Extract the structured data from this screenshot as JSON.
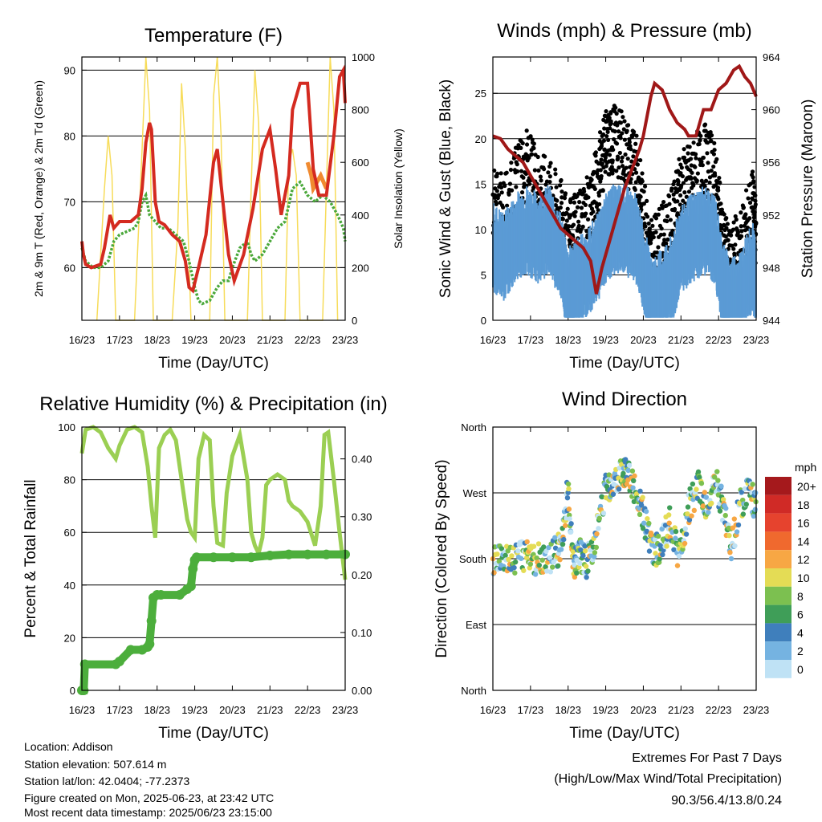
{
  "chart_data": [
    {
      "id": "temperature",
      "type": "line",
      "title": "Temperature (F)",
      "xlabel": "Time (Day/UTC)",
      "ylabel": "2m & 9m T (Red, Orange) & 2m Td (Green)",
      "ylabel_right": "Solar Insolation (Yellow)",
      "x_ticks": [
        "16/23",
        "17/23",
        "18/23",
        "19/23",
        "20/23",
        "21/23",
        "22/23",
        "23/23"
      ],
      "y_ticks": [
        "60",
        "70",
        "80",
        "90"
      ],
      "y_ticks_right": [
        "0",
        "200",
        "400",
        "600",
        "800",
        "1000"
      ],
      "ylim": [
        52,
        92
      ],
      "ylim_right": [
        0,
        1000
      ],
      "xlim": [
        0,
        7
      ],
      "colors": {
        "t2m": "#d42a20",
        "t9m": "#f08a30",
        "td": "#4aa83a",
        "solar": "#f7dc5a"
      },
      "series": [
        {
          "name": "2m T",
          "x": [
            0,
            0.04,
            0.1,
            0.25,
            0.5,
            0.6,
            0.75,
            0.85,
            1.0,
            1.15,
            1.3,
            1.5,
            1.6,
            1.7,
            1.8,
            1.85,
            1.95,
            2.05,
            2.2,
            2.4,
            2.6,
            2.75,
            2.85,
            2.95,
            3.1,
            3.3,
            3.5,
            3.6,
            3.75,
            3.9,
            4.05,
            4.3,
            4.55,
            4.8,
            5.0,
            5.15,
            5.3,
            5.5,
            5.6,
            5.8,
            6.0,
            6.15,
            6.3,
            6.5,
            6.7,
            6.85,
            6.95,
            7.0
          ],
          "values": [
            64,
            62,
            60.5,
            60,
            60.5,
            63,
            68,
            66,
            67,
            67,
            67,
            68,
            72,
            79,
            82,
            81,
            70,
            67,
            66.5,
            65,
            64,
            61,
            57,
            56.5,
            60,
            65,
            76,
            78,
            70,
            62,
            58,
            62,
            69,
            78,
            81,
            75,
            68,
            74,
            84,
            88,
            88,
            75,
            71,
            71,
            80,
            89,
            90,
            85
          ]
        },
        {
          "name": "9m T",
          "x": [
            6.0,
            6.1,
            6.15,
            6.25,
            6.35,
            6.5
          ],
          "values": [
            76,
            74,
            72,
            73,
            74,
            72
          ]
        },
        {
          "name": "2m Td",
          "x": [
            0,
            0.1,
            0.3,
            0.5,
            0.7,
            0.85,
            1.0,
            1.2,
            1.4,
            1.5,
            1.6,
            1.7,
            1.8,
            1.95,
            2.1,
            2.3,
            2.5,
            2.7,
            2.85,
            3.0,
            3.1,
            3.2,
            3.4,
            3.6,
            3.75,
            3.9,
            4.0,
            4.2,
            4.4,
            4.5,
            4.6,
            4.8,
            5.0,
            5.2,
            5.4,
            5.6,
            5.8,
            6.0,
            6.2,
            6.4,
            6.6,
            6.8,
            6.95,
            7.0
          ],
          "values": [
            63,
            61,
            60,
            60,
            61,
            64,
            65,
            65.5,
            66,
            67,
            70,
            71,
            68,
            67,
            66,
            66,
            65,
            64,
            61,
            57,
            55,
            54.5,
            55,
            57,
            58,
            58,
            60,
            63,
            64,
            62,
            61,
            62,
            64,
            66,
            67,
            72,
            73,
            71,
            70,
            71,
            70,
            68,
            66,
            64
          ]
        },
        {
          "name": "Solar Insolation",
          "x": [
            0.4,
            0.6,
            0.7,
            0.8,
            0.9,
            1.4,
            1.6,
            1.7,
            1.8,
            1.9,
            2.4,
            2.55,
            2.65,
            2.75,
            2.9,
            3.4,
            3.5,
            3.6,
            3.7,
            3.8,
            4.4,
            4.5,
            4.6,
            4.7,
            4.8,
            5.4,
            5.5,
            5.6,
            5.7,
            5.8,
            6.4,
            6.5,
            6.6,
            6.7,
            6.8
          ],
          "values": [
            0,
            500,
            700,
            550,
            0,
            0,
            650,
            1000,
            800,
            0,
            0,
            350,
            900,
            650,
            0,
            0,
            850,
            1000,
            700,
            0,
            0,
            500,
            950,
            750,
            0,
            0,
            600,
            650,
            550,
            0,
            0,
            500,
            1000,
            800,
            0
          ]
        }
      ]
    },
    {
      "id": "winds",
      "type": "scatter",
      "title": "Winds (mph) & Pressure (mb)",
      "xlabel": "Time (Day/UTC)",
      "ylabel": "Sonic Wind & Gust (Blue, Black)",
      "ylabel_right": "Station Pressure (Maroon)",
      "x_ticks": [
        "16/23",
        "17/23",
        "18/23",
        "19/23",
        "20/23",
        "21/23",
        "22/23",
        "23/23"
      ],
      "y_ticks": [
        "0",
        "5",
        "10",
        "15",
        "20",
        "25"
      ],
      "y_ticks_right": [
        "944",
        "948",
        "952",
        "956",
        "960",
        "964"
      ],
      "ylim": [
        0,
        29
      ],
      "ylim_right": [
        944,
        964
      ],
      "xlim": [
        0,
        7
      ],
      "colors": {
        "wind": "#5b9bd5",
        "gust": "#000000",
        "pressure": "#a01818"
      },
      "series": [
        {
          "name": "Sonic Wind",
          "x": [
            0,
            0.3,
            0.6,
            0.9,
            1.2,
            1.5,
            1.8,
            2.0,
            2.2,
            2.5,
            2.8,
            3.0,
            3.2,
            3.5,
            3.8,
            4.0,
            4.2,
            4.5,
            4.8,
            5.0,
            5.3,
            5.6,
            5.9,
            6.1,
            6.3,
            6.6,
            6.9,
            7.0
          ],
          "values": [
            9,
            8,
            10,
            11,
            10,
            11,
            8,
            4,
            5,
            6,
            8,
            10,
            11,
            11,
            10,
            7,
            3,
            4,
            6,
            9,
            10,
            11,
            10,
            5,
            3,
            4,
            7,
            5
          ]
        },
        {
          "name": "Gust",
          "x": [
            0,
            0.3,
            0.6,
            0.9,
            1.2,
            1.5,
            1.8,
            2.0,
            2.2,
            2.5,
            2.8,
            3.0,
            3.2,
            3.5,
            3.8,
            4.0,
            4.2,
            4.5,
            4.8,
            5.0,
            5.3,
            5.6,
            5.9,
            6.1,
            6.3,
            6.6,
            6.9,
            7.0
          ],
          "values": [
            13,
            12,
            15,
            17,
            15,
            14,
            12,
            9,
            10,
            12,
            16,
            19,
            20,
            19,
            17,
            12,
            7,
            9,
            11,
            15,
            16,
            18,
            16,
            9,
            6,
            9,
            13,
            9
          ]
        },
        {
          "name": "Station Pressure",
          "x": [
            0,
            0.2,
            0.4,
            0.6,
            0.8,
            1.0,
            1.2,
            1.4,
            1.6,
            1.8,
            2.0,
            2.2,
            2.4,
            2.6,
            2.75,
            2.9,
            3.1,
            3.3,
            3.5,
            3.7,
            3.9,
            4.0,
            4.1,
            4.2,
            4.3,
            4.5,
            4.7,
            4.9,
            5.1,
            5.2,
            5.4,
            5.6,
            5.8,
            6.0,
            6.2,
            6.4,
            6.55,
            6.7,
            6.85,
            7.0
          ],
          "values": [
            958,
            957.8,
            957,
            956.5,
            956,
            955,
            954,
            953,
            952,
            951,
            950.5,
            950,
            949.5,
            948.5,
            946,
            948,
            950,
            952,
            954,
            955.5,
            957,
            958,
            959.5,
            961,
            962,
            961.5,
            960,
            959,
            958.5,
            958,
            958,
            960,
            960,
            961.5,
            962,
            963,
            963.3,
            962.5,
            962,
            961
          ]
        }
      ]
    },
    {
      "id": "humidity",
      "type": "line",
      "title": "Relative Humidity (%) & Precipitation (in)",
      "xlabel": "Time (Day/UTC)",
      "ylabel": "Percent & Total Rainfall",
      "x_ticks": [
        "16/23",
        "17/23",
        "18/23",
        "19/23",
        "20/23",
        "21/23",
        "22/23",
        "23/23"
      ],
      "y_ticks": [
        "0",
        "20",
        "40",
        "60",
        "80",
        "100"
      ],
      "y_ticks_right": [
        "0.00",
        "0.10",
        "0.20",
        "0.30",
        "0.40"
      ],
      "ylim": [
        0,
        100
      ],
      "ylim_right": [
        0,
        0.455
      ],
      "xlim": [
        0,
        7
      ],
      "colors": {
        "rh": "#9bcf53",
        "precip": "#4cae3c"
      },
      "series": [
        {
          "name": "Relative Humidity",
          "x": [
            0,
            0.1,
            0.3,
            0.5,
            0.7,
            0.8,
            0.9,
            1.0,
            1.2,
            1.4,
            1.6,
            1.75,
            1.85,
            1.95,
            2.05,
            2.2,
            2.35,
            2.5,
            2.65,
            2.8,
            2.9,
            3.0,
            3.1,
            3.25,
            3.4,
            3.5,
            3.6,
            3.75,
            3.85,
            4.0,
            4.2,
            4.4,
            4.5,
            4.6,
            4.7,
            4.8,
            4.9,
            5.0,
            5.2,
            5.4,
            5.5,
            5.6,
            5.8,
            6.0,
            6.2,
            6.35,
            6.45,
            6.55,
            6.7,
            6.85,
            7.0
          ],
          "values": [
            90,
            99,
            100,
            98,
            92,
            90,
            88,
            93,
            99,
            100,
            98,
            85,
            70,
            58,
            92,
            97,
            99,
            95,
            80,
            65,
            60,
            58,
            88,
            97,
            95,
            70,
            56,
            55,
            75,
            89,
            97,
            80,
            60,
            55,
            52,
            58,
            78,
            80,
            82,
            80,
            72,
            70,
            68,
            64,
            55,
            70,
            97,
            98,
            80,
            60,
            42
          ]
        },
        {
          "name": "Total Rainfall",
          "x": [
            0,
            0.05,
            0.08,
            0.9,
            1.0,
            1.3,
            1.6,
            1.75,
            1.8,
            1.85,
            1.9,
            2.0,
            2.1,
            2.6,
            2.8,
            2.9,
            2.95,
            3.0,
            3.05,
            3.5,
            4.0,
            4.5,
            5.0,
            5.5,
            6.0,
            6.5,
            7.0
          ],
          "values": [
            0,
            0.0,
            0.045,
            0.045,
            0.05,
            0.07,
            0.07,
            0.075,
            0.08,
            0.12,
            0.16,
            0.165,
            0.165,
            0.165,
            0.175,
            0.18,
            0.21,
            0.225,
            0.23,
            0.23,
            0.23,
            0.23,
            0.233,
            0.235,
            0.235,
            0.235,
            0.235
          ]
        }
      ]
    },
    {
      "id": "direction",
      "type": "scatter",
      "title": "Wind Direction",
      "xlabel": "Time (Day/UTC)",
      "ylabel": "Direction (Colored By Speed)",
      "x_ticks": [
        "16/23",
        "17/23",
        "18/23",
        "19/23",
        "20/23",
        "21/23",
        "22/23",
        "23/23"
      ],
      "y_ticks": [
        "North",
        "East",
        "South",
        "West",
        "North"
      ],
      "ylim": [
        0,
        360
      ],
      "xlim": [
        0,
        7
      ],
      "legend_title": "mph",
      "legend_labels": [
        "20+",
        "18",
        "16",
        "14",
        "12",
        "10",
        "8",
        "6",
        "4",
        "2",
        "0"
      ],
      "legend_colors": [
        "#a5191c",
        "#d02a26",
        "#e6432e",
        "#f0692e",
        "#f7a744",
        "#e4dc55",
        "#7cc050",
        "#3f9e58",
        "#3f7fbc",
        "#75b3e1",
        "#bfe2f5"
      ],
      "series": [
        {
          "name": "Direction",
          "x": [
            0,
            0.3,
            0.6,
            0.9,
            1.1,
            1.4,
            1.7,
            1.85,
            2.0,
            2.15,
            2.3,
            2.5,
            2.75,
            3.0,
            3.2,
            3.45,
            3.6,
            3.85,
            4.05,
            4.3,
            4.5,
            4.7,
            4.95,
            5.2,
            5.45,
            5.7,
            5.95,
            6.15,
            6.35,
            6.6,
            6.85,
            7.0
          ],
          "values": [
            180,
            182,
            178,
            185,
            180,
            175,
            190,
            200,
            280,
            170,
            185,
            175,
            210,
            280,
            285,
            300,
            290,
            270,
            230,
            190,
            200,
            230,
            180,
            250,
            280,
            245,
            285,
            240,
            200,
            260,
            270,
            250
          ]
        }
      ]
    }
  ],
  "footer": {
    "location": "Location: Addison",
    "elevation": "Station elevation: 507.614 m",
    "latlon": "Station lat/lon: 42.0404; -77.2373",
    "created": "Figure created on Mon, 2025-06-23, at 23:42 UTC",
    "recent": "Most recent data timestamp: 2025/06/23 23:15:00"
  },
  "extremes": {
    "title": "Extremes For Past 7 Days",
    "subtitle": "(High/Low/Max Wind/Total Precipitation)",
    "values": "90.3/56.4/13.8/0.24"
  }
}
